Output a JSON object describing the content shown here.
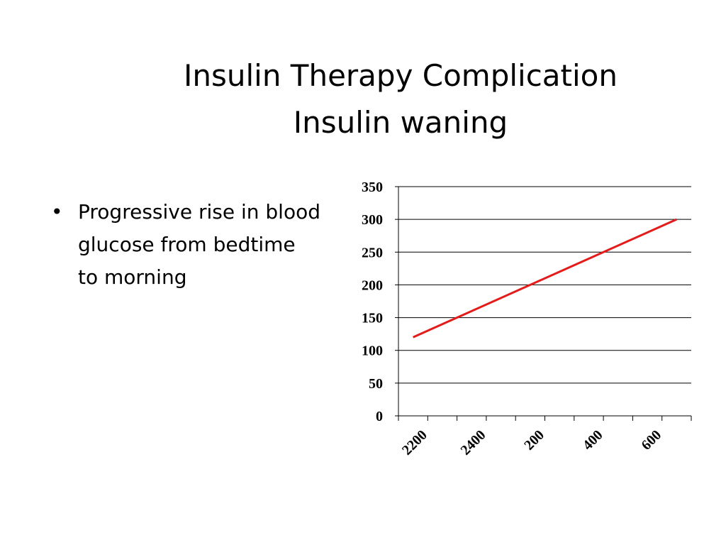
{
  "slide": {
    "title_lines": [
      "Insulin Therapy Complication",
      "Insulin waning"
    ],
    "bullets": [
      "Progressive rise in blood glucose from bedtime to morning"
    ]
  },
  "chart_data": {
    "type": "line",
    "title": "",
    "xlabel": "",
    "ylabel": "",
    "categories": [
      "2200",
      "2400",
      "200",
      "400",
      "600"
    ],
    "ylim": [
      0,
      350
    ],
    "yticks": [
      0,
      50,
      100,
      150,
      200,
      250,
      300,
      350
    ],
    "grid": true,
    "legend": "none",
    "series": [
      {
        "color": "#e31b1b",
        "x": [
          2200,
          600
        ],
        "y": [
          120,
          300
        ]
      }
    ]
  }
}
